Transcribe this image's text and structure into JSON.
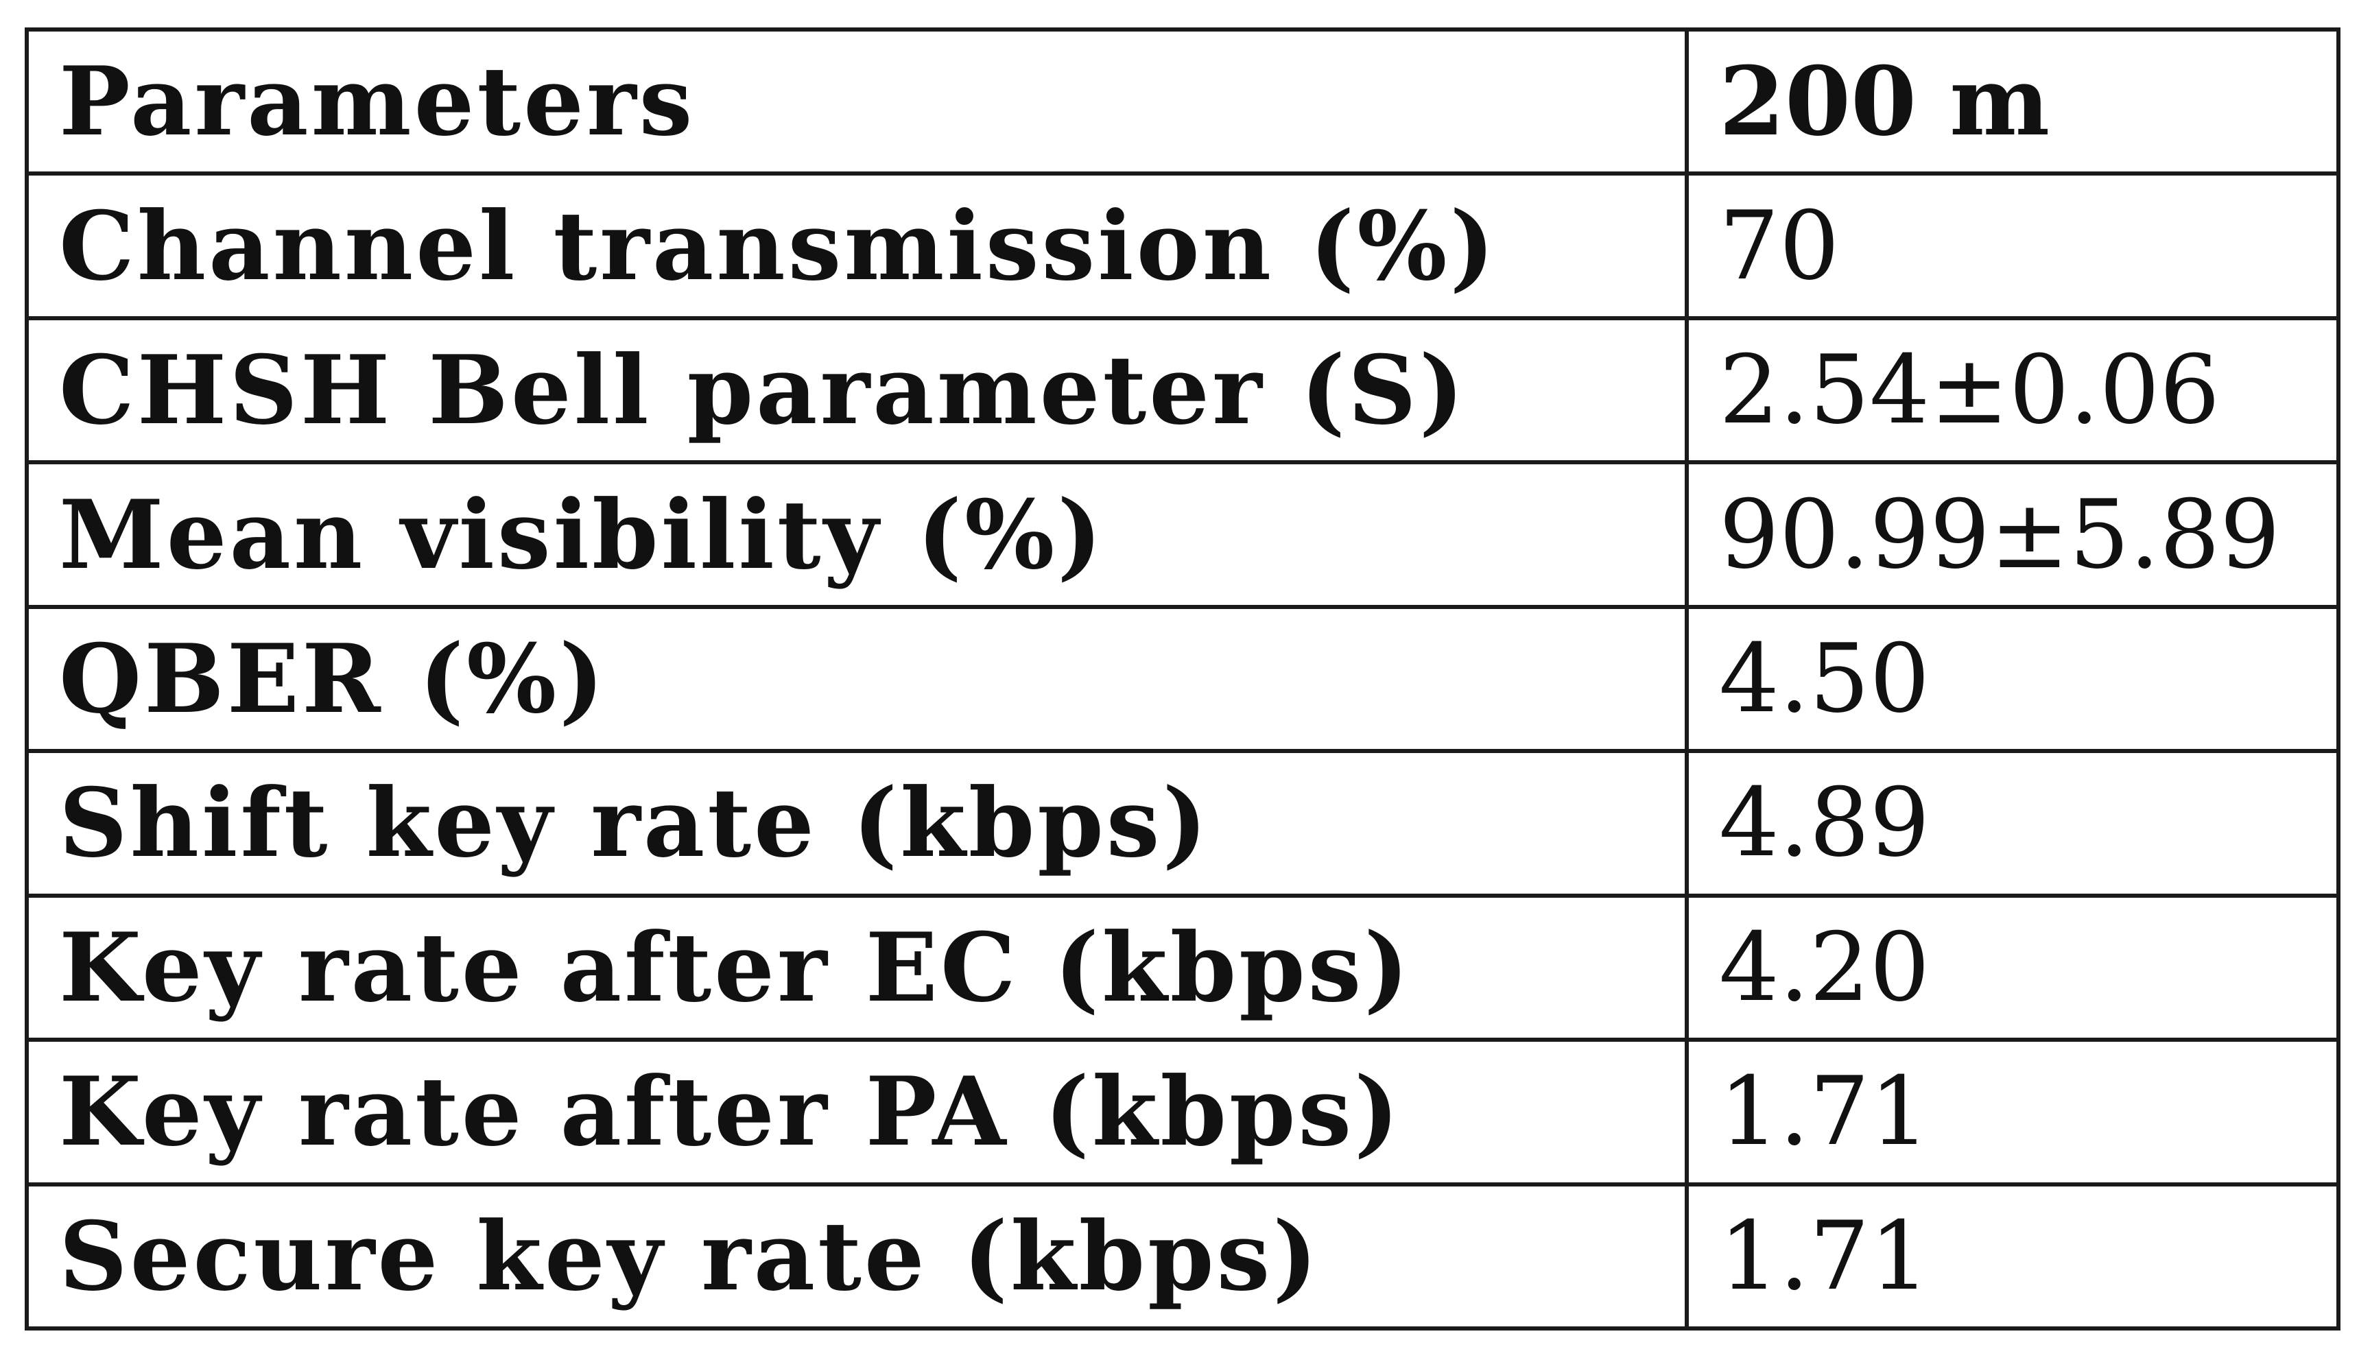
{
  "table": {
    "header": {
      "parameter": "Parameters",
      "value": "200 m"
    },
    "rows": [
      {
        "parameter": "Channel transmission (%)",
        "value": "70"
      },
      {
        "parameter": "CHSH Bell parameter (S)",
        "value": "2.54±0.06"
      },
      {
        "parameter": "Mean visibility (%)",
        "value": "90.99±5.89"
      },
      {
        "parameter": "QBER (%)",
        "value": "4.50"
      },
      {
        "parameter": "Shift key rate (kbps)",
        "value": "4.89"
      },
      {
        "parameter": "Key rate after EC (kbps)",
        "value": "4.20"
      },
      {
        "parameter": "Key rate after PA (kbps)",
        "value": "1.71"
      },
      {
        "parameter": "Secure key rate (kbps)",
        "value": "1.71"
      }
    ]
  }
}
